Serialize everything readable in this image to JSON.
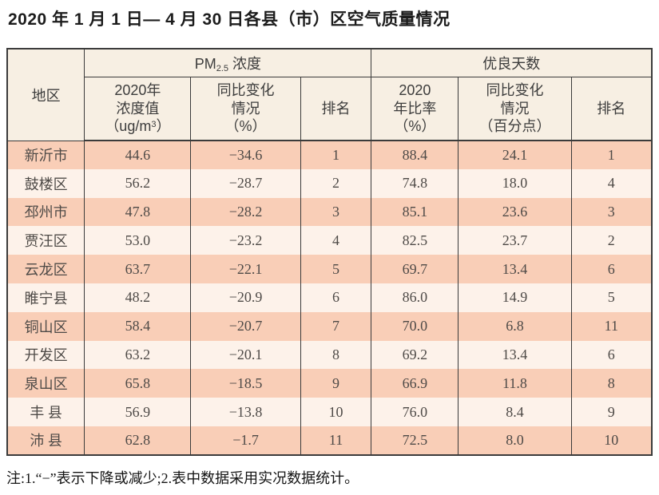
{
  "title": "2020 年 1 月 1 日— 4 月 30 日各县（市）区空气质量情况",
  "table": {
    "region_header": "地区",
    "group_pm25": {
      "prefix": "PM",
      "sub": "2.5",
      "suffix": " 浓度"
    },
    "group_good_days": "优良天数",
    "sub_headers": {
      "conc_line1": "2020年",
      "conc_line2": "浓度值",
      "conc_unit_prefix": "（ug/m",
      "conc_unit_sup": "3",
      "conc_unit_suffix": "）",
      "conc_change": "同比变化\n情况\n（%）",
      "rank_pm25": "排名",
      "ratio": "2020\n年比率\n（%）",
      "ratio_change": "同比变化\n情况\n（百分点）",
      "rank_good": "排名"
    },
    "rows": [
      {
        "region": "新沂市",
        "conc": "44.6",
        "conc_change": "−34.6",
        "conc_rank": "1",
        "ratio": "88.4",
        "ratio_change": "24.1",
        "ratio_rank": "1"
      },
      {
        "region": "鼓楼区",
        "conc": "56.2",
        "conc_change": "−28.7",
        "conc_rank": "2",
        "ratio": "74.8",
        "ratio_change": "18.0",
        "ratio_rank": "4"
      },
      {
        "region": "邳州市",
        "conc": "47.8",
        "conc_change": "−28.2",
        "conc_rank": "3",
        "ratio": "85.1",
        "ratio_change": "23.6",
        "ratio_rank": "3"
      },
      {
        "region": "贾汪区",
        "conc": "53.0",
        "conc_change": "−23.2",
        "conc_rank": "4",
        "ratio": "82.5",
        "ratio_change": "23.7",
        "ratio_rank": "2"
      },
      {
        "region": "云龙区",
        "conc": "63.7",
        "conc_change": "−22.1",
        "conc_rank": "5",
        "ratio": "69.7",
        "ratio_change": "13.4",
        "ratio_rank": "6"
      },
      {
        "region": "睢宁县",
        "conc": "48.2",
        "conc_change": "−20.9",
        "conc_rank": "6",
        "ratio": "86.0",
        "ratio_change": "14.9",
        "ratio_rank": "5"
      },
      {
        "region": "铜山区",
        "conc": "58.4",
        "conc_change": "−20.7",
        "conc_rank": "7",
        "ratio": "70.0",
        "ratio_change": "6.8",
        "ratio_rank": "11"
      },
      {
        "region": "开发区",
        "conc": "63.2",
        "conc_change": "−20.1",
        "conc_rank": "8",
        "ratio": "69.2",
        "ratio_change": "13.4",
        "ratio_rank": "6"
      },
      {
        "region": "泉山区",
        "conc": "65.8",
        "conc_change": "−18.5",
        "conc_rank": "9",
        "ratio": "66.9",
        "ratio_change": "11.8",
        "ratio_rank": "8"
      },
      {
        "region": "丰 县",
        "conc": "56.9",
        "conc_change": "−13.8",
        "conc_rank": "10",
        "ratio": "76.0",
        "ratio_change": "8.4",
        "ratio_rank": "9"
      },
      {
        "region": "沛 县",
        "conc": "62.8",
        "conc_change": "−1.7",
        "conc_rank": "11",
        "ratio": "72.5",
        "ratio_change": "8.0",
        "ratio_rank": "10"
      }
    ]
  },
  "footnote": "注:1.“−”表示下降或减少;2.表中数据采用实况数据统计。",
  "colors": {
    "border": "#3b3b3b",
    "header_bg": "#f7efe3",
    "row_odd": "#f9ceb7",
    "row_even": "#fdf2ea"
  }
}
